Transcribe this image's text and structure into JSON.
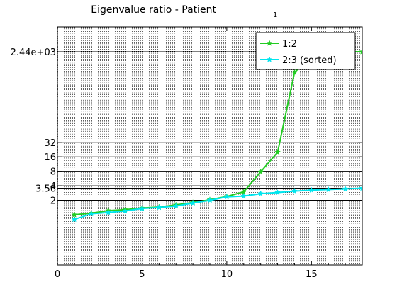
{
  "chart_data": {
    "type": "line",
    "title": "Eigenvalue ratio - Patient",
    "title_subscript": "1",
    "xlabel": "",
    "ylabel": "",
    "xlim": [
      0,
      18
    ],
    "ylim": [
      0.09,
      8000
    ],
    "y_scale": "log2",
    "x_ticks": [
      0,
      5,
      10,
      15
    ],
    "y_ticks": [
      {
        "value": 2,
        "label": "2"
      },
      {
        "value": 3.56,
        "label": "3.56"
      },
      {
        "value": 4,
        "label": "4"
      },
      {
        "value": 8,
        "label": "8"
      },
      {
        "value": 16,
        "label": "16"
      },
      {
        "value": 32,
        "label": "32"
      },
      {
        "value": 2440,
        "label": "2.44e+03"
      }
    ],
    "grid": "y",
    "legend_position": "top-right",
    "x": [
      1,
      2,
      3,
      4,
      5,
      6,
      7,
      8,
      9,
      10,
      11,
      12,
      13,
      14,
      15,
      16,
      17,
      18
    ],
    "series": [
      {
        "name": "1:2",
        "color": "#22cc22",
        "marker": "star",
        "values": [
          1.0,
          1.08,
          1.22,
          1.28,
          1.38,
          1.45,
          1.6,
          1.8,
          2.05,
          2.4,
          3.0,
          7.8,
          20,
          900,
          2000,
          2440,
          2440,
          2440
        ]
      },
      {
        "name": "2:3 (sorted)",
        "color": "#00e5ee",
        "marker": "star",
        "values": [
          0.8,
          1.05,
          1.12,
          1.2,
          1.35,
          1.42,
          1.52,
          1.75,
          2.0,
          2.35,
          2.45,
          2.75,
          2.9,
          3.1,
          3.25,
          3.35,
          3.45,
          3.56
        ]
      }
    ]
  }
}
